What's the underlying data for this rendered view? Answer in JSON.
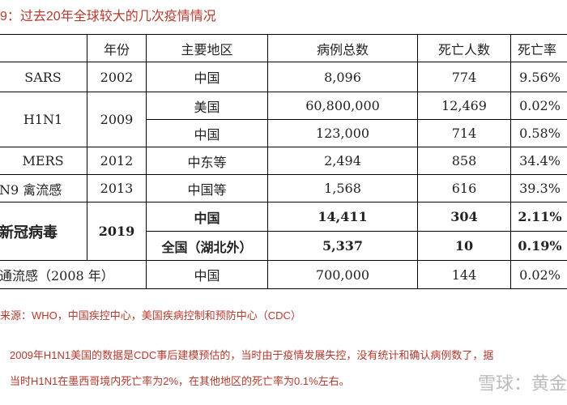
{
  "title": "9：过去20年全球较大的几次疫情情况",
  "table": {
    "header": [
      "年份",
      "主要地区",
      "病例总数",
      "死亡人数",
      "死亡率"
    ],
    "rows": [
      [
        "SARS",
        "2002",
        "中国",
        "8,096",
        "774",
        "9.56%"
      ],
      [
        "H1N1",
        "2009",
        "美国",
        "60,800,000",
        "12,469",
        "0.02%"
      ],
      [
        "中国",
        "123,000",
        "714",
        "0.58%"
      ],
      [
        "MERS",
        "2012",
        "中东等",
        "2,494",
        "858",
        "34.4%"
      ],
      [
        "N9 禽流感",
        "2013",
        "中国等",
        "1,568",
        "616",
        "39.3%"
      ],
      [
        "新冠病毒",
        "2019",
        "中国",
        "14,411",
        "304",
        "2.11%"
      ],
      [
        "全国（湖北外）",
        "5,337",
        "10",
        "0.19%"
      ],
      [
        "通流感（2008 年）",
        "中国",
        "700,000",
        "144",
        "0.02%"
      ]
    ]
  },
  "notes": [
    "来源：WHO，中国疾控中心，美国疾病控制和预防中心（CDC）",
    "2009年H1N1美国的数据是CDC事后建模预估的，当时由于疫情发展失控，没有统计和确认病例数了，据",
    "当时H1N1在墨西哥境内死亡率为2%，在其他地区的死亡率为0.1%左右。"
  ],
  "watermark": "雪球：黄金"
}
